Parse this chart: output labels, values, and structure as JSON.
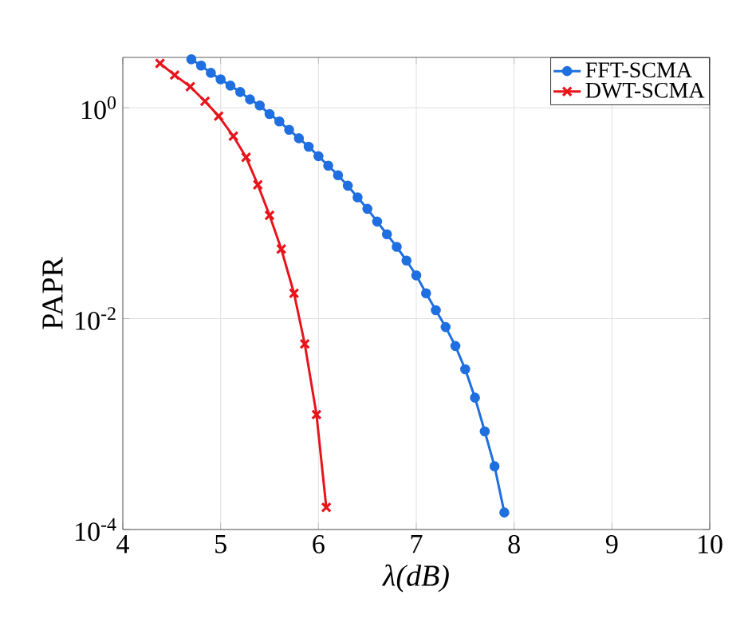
{
  "chart_data": {
    "type": "line",
    "xlabel": "λ(dB)",
    "ylabel": "PAPR",
    "log": "y",
    "grid": true,
    "legend": "top right",
    "xlim": [
      4,
      10
    ],
    "xticks": [
      4,
      5,
      6,
      7,
      8,
      9,
      10
    ],
    "ylim": [
      0.0001,
      3
    ],
    "yticks": [
      {
        "value": 0.0001,
        "label": "10$^{-4}$"
      },
      {
        "value": 0.01,
        "label": "10$^{-2}$"
      },
      {
        "value": 1,
        "label": "10$^{0}$"
      }
    ],
    "series": [
      {
        "name": "FFT-SCMA",
        "color": "#1f6fe0",
        "marker": "circle",
        "x": [
          4.7,
          4.8,
          4.9,
          5.0,
          5.1,
          5.2,
          5.3,
          5.4,
          5.5,
          5.6,
          5.7,
          5.8,
          5.9,
          6.0,
          6.1,
          6.2,
          6.3,
          6.4,
          6.5,
          6.6,
          6.7,
          6.8,
          6.9,
          7.0,
          7.1,
          7.2,
          7.3,
          7.4,
          7.5,
          7.6,
          7.7,
          7.8,
          7.9
        ],
        "values": [
          2.88,
          2.51,
          2.14,
          1.86,
          1.62,
          1.41,
          1.2,
          1.05,
          0.871,
          0.741,
          0.617,
          0.513,
          0.427,
          0.347,
          0.282,
          0.229,
          0.182,
          0.141,
          0.11,
          0.0832,
          0.0631,
          0.0479,
          0.0355,
          0.0257,
          0.0174,
          0.012,
          0.00832,
          0.0055,
          0.00331,
          0.00178,
          0.000851,
          0.000398,
          0.000145
        ]
      },
      {
        "name": "DWT-SCMA",
        "color": "#e8141c",
        "marker": "cross",
        "x": [
          4.38,
          4.53,
          4.69,
          4.84,
          4.98,
          5.13,
          5.26,
          5.38,
          5.5,
          5.62,
          5.75,
          5.86,
          5.98,
          6.08
        ],
        "values": [
          2.63,
          2.04,
          1.58,
          1.15,
          0.832,
          0.537,
          0.339,
          0.186,
          0.0955,
          0.0457,
          0.0174,
          0.00575,
          0.00123,
          0.000162
        ]
      }
    ]
  }
}
